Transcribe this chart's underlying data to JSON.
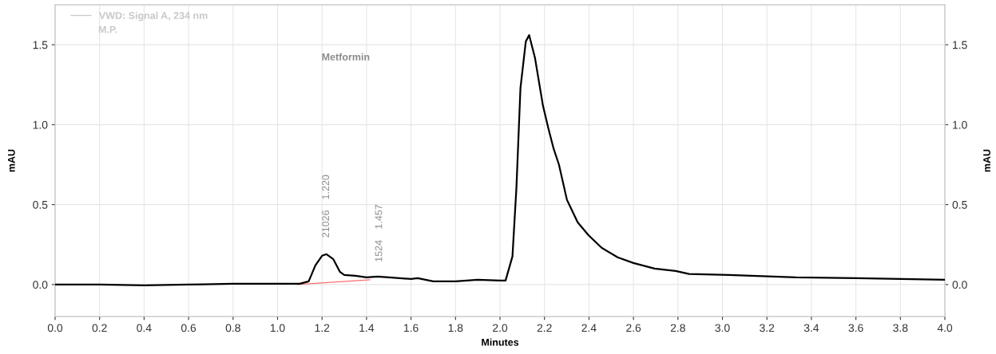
{
  "chart_data": {
    "type": "line",
    "xlabel": "Minutes",
    "ylabel": "mAU",
    "y2label": "mAU",
    "xlim": [
      0.0,
      4.0
    ],
    "xticks": [
      {
        "value": 0,
        "label": "0.0"
      },
      0.2,
      0.4,
      0.6,
      0.8,
      {
        "value": 1,
        "label": "1.0"
      },
      1.2,
      1.4,
      1.6,
      1.8,
      {
        "value": 2,
        "label": "2.0"
      },
      2.2,
      2.4,
      2.6,
      2.8,
      {
        "value": 3,
        "label": "3.0"
      },
      3.2,
      3.4,
      3.6,
      3.8,
      {
        "value": 4,
        "label": "4.0"
      }
    ],
    "ylim": [
      -0.2,
      1.75
    ],
    "yticks": [
      {
        "value": 0,
        "label": "0.0"
      },
      0.5,
      {
        "value": 1,
        "label": "1.0"
      },
      1.5
    ],
    "y2lim": [
      -0.2,
      1.75
    ],
    "y2ticks": [
      {
        "value": 0,
        "label": "0.0"
      },
      0.5,
      {
        "value": 1,
        "label": "1.0"
      },
      1.5
    ],
    "grid": true,
    "legend": "top left",
    "series": [
      {
        "name": "VWD: Signal A, 234 nm",
        "color": "#000000",
        "x": [
          0.0,
          0.2,
          0.4,
          0.6,
          0.8,
          1.0,
          1.1,
          1.14,
          1.17,
          1.2,
          1.22,
          1.25,
          1.28,
          1.3,
          1.35,
          1.4,
          1.45,
          1.5,
          1.6,
          1.63,
          1.7,
          1.8,
          1.9,
          2.0,
          2.025,
          2.056,
          2.074,
          2.092,
          2.116,
          2.131,
          2.157,
          2.193,
          2.217,
          2.241,
          2.265,
          2.301,
          2.349,
          2.397,
          2.457,
          2.529,
          2.6,
          2.695,
          2.79,
          2.85,
          3.03,
          3.33,
          3.6,
          3.8,
          4.0
        ],
        "values": [
          0.0,
          0.0,
          -0.005,
          0.0,
          0.005,
          0.005,
          0.005,
          0.02,
          0.12,
          0.18,
          0.19,
          0.16,
          0.08,
          0.06,
          0.055,
          0.045,
          0.05,
          0.045,
          0.035,
          0.04,
          0.02,
          0.02,
          0.03,
          0.025,
          0.025,
          0.176,
          0.61,
          1.23,
          1.52,
          1.56,
          1.42,
          1.12,
          0.98,
          0.85,
          0.75,
          0.53,
          0.39,
          0.31,
          0.23,
          0.17,
          0.135,
          0.1,
          0.085,
          0.066,
          0.06,
          0.045,
          0.04,
          0.035,
          0.03
        ]
      },
      {
        "type": "line",
        "color": "#ff6b6b",
        "x": [
          1.088,
          1.415
        ],
        "values": [
          0.0,
          0.03
        ]
      }
    ],
    "annotations": [
      "M.P.",
      "Metformin",
      "21026",
      "1.220",
      "1524",
      "1.457"
    ]
  }
}
